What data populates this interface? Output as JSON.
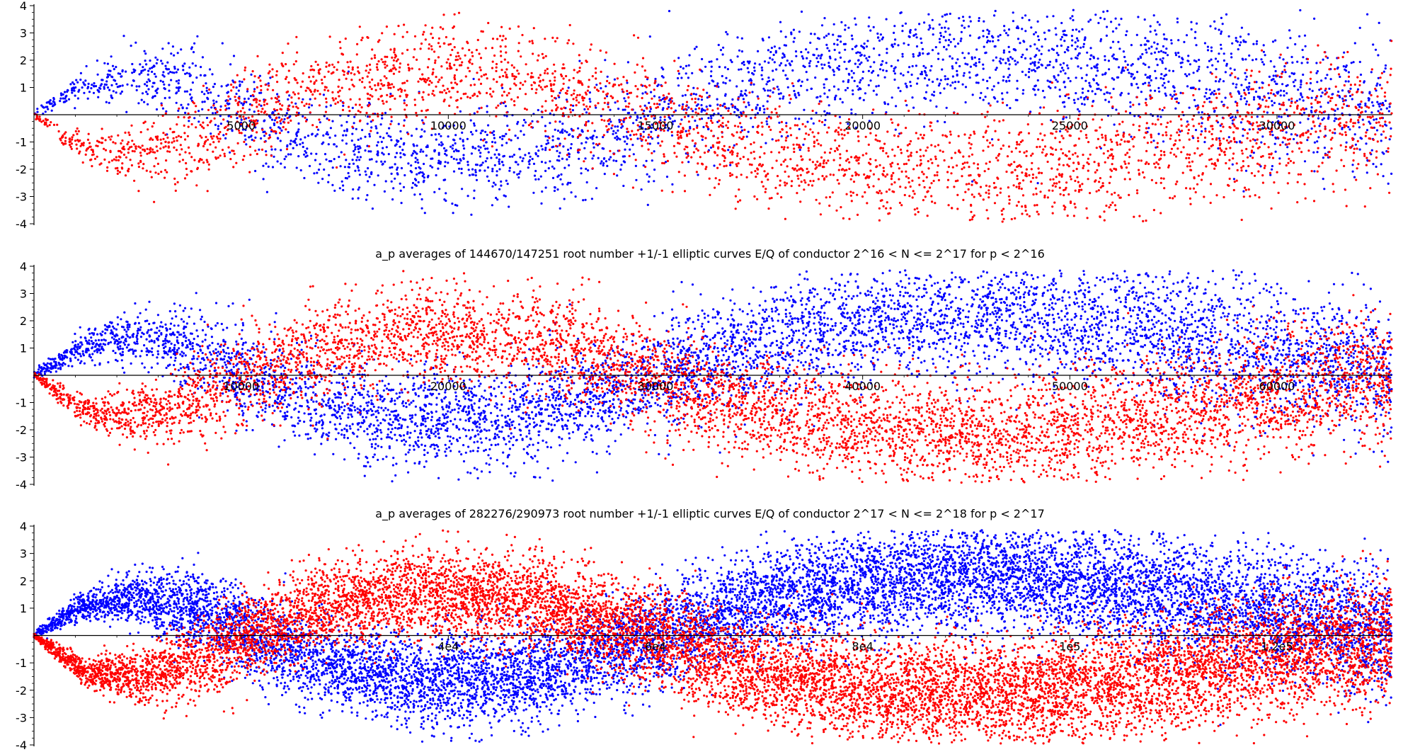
{
  "figure": {
    "panel_titles": [
      "",
      "a_p averages of 144670/147251 root number +1/-1 elliptic curves E/Q of conductor 2^16 < N <= 2^17 for p < 2^16",
      "a_p averages of 282276/290973 root number +1/-1 elliptic curves E/Q of conductor 2^17 < N <= 2^18 for p < 2^17"
    ],
    "colors": {
      "root_number_plus_one": "#0000ff",
      "root_number_minus_one": "#ff0000",
      "axes": "#000000"
    }
  },
  "chart_data": [
    {
      "type": "scatter",
      "title": "",
      "xlabel": "",
      "ylabel": "",
      "xlim": [
        0,
        32768
      ],
      "ylim": [
        -4,
        4
      ],
      "xticks": [
        5000,
        10000,
        15000,
        20000,
        25000,
        30000
      ],
      "xtick_labels": [
        "5000",
        "10000",
        "15000",
        "20000",
        "25000",
        "30000"
      ],
      "yticks": [
        -4,
        -3,
        -2,
        -1,
        1,
        2,
        3,
        4
      ],
      "ytick_labels": [
        "-4",
        "-3",
        "-2",
        "-1",
        "1",
        "2",
        "3",
        "4"
      ],
      "grid": false,
      "series": [
        {
          "color": "#0000ff",
          "approx_trend": {
            "x": [
              0,
              1200,
              2500,
              4000,
              5000,
              7000,
              9500,
              12000,
              14500,
              17000,
              20000,
              23000,
              26000,
              29000,
              31500,
              32768
            ],
            "y": [
              0,
              1.1,
              1.4,
              0.9,
              0.1,
              -1.1,
              -1.7,
              -1.4,
              -0.4,
              1.0,
              2.0,
              2.2,
              1.8,
              1.1,
              0.4,
              0.1
            ]
          },
          "approx_point_count": 3200,
          "approx_spread": 0.55
        },
        {
          "color": "#ff0000",
          "approx_trend": {
            "x": [
              0,
              1200,
              2500,
              4000,
              5000,
              7000,
              9500,
              12000,
              14500,
              17000,
              20000,
              23000,
              26000,
              29000,
              31500,
              32768
            ],
            "y": [
              0,
              -1.3,
              -1.5,
              -0.9,
              -0.1,
              1.0,
              1.6,
              1.3,
              0.2,
              -1.2,
              -2.0,
              -2.2,
              -1.8,
              -1.0,
              -0.3,
              -0.1
            ]
          },
          "approx_point_count": 3200,
          "approx_spread": 0.55
        }
      ]
    },
    {
      "type": "scatter",
      "title": "a_p averages of 144670/147251 root number +1/-1 elliptic curves E/Q of conductor 2^16 < N <= 2^17 for p < 2^16",
      "xlabel": "",
      "ylabel": "",
      "xlim": [
        0,
        65536
      ],
      "ylim": [
        -4,
        4
      ],
      "xticks": [
        10000,
        20000,
        30000,
        40000,
        50000,
        60000
      ],
      "xtick_labels": [
        "10000",
        "20000",
        "30000",
        "40000",
        "50000",
        "60000"
      ],
      "yticks": [
        -4,
        -3,
        -2,
        -1,
        1,
        2,
        3,
        4
      ],
      "ytick_labels": [
        "-4",
        "-3",
        "-2",
        "-1",
        "1",
        "2",
        "3",
        "4"
      ],
      "grid": false,
      "series": [
        {
          "color": "#0000ff",
          "approx_trend": {
            "x": [
              0,
              2400,
              5000,
              8000,
              10000,
              14000,
              19000,
              24000,
              29000,
              34000,
              40000,
              46000,
              52000,
              58000,
              63000,
              65536
            ],
            "y": [
              0,
              1.1,
              1.4,
              0.9,
              0.1,
              -1.1,
              -1.7,
              -1.4,
              -0.4,
              1.0,
              2.0,
              2.2,
              1.8,
              1.1,
              0.4,
              0.1
            ]
          },
          "approx_point_count": 6000,
          "approx_spread": 0.55
        },
        {
          "color": "#ff0000",
          "approx_trend": {
            "x": [
              0,
              2400,
              5000,
              8000,
              10000,
              14000,
              19000,
              24000,
              29000,
              34000,
              40000,
              46000,
              52000,
              58000,
              63000,
              65536
            ],
            "y": [
              0,
              -1.3,
              -1.5,
              -0.9,
              -0.1,
              1.0,
              1.6,
              1.3,
              0.2,
              -1.2,
              -2.0,
              -2.2,
              -1.8,
              -1.0,
              -0.3,
              -0.1
            ]
          },
          "approx_point_count": 6000,
          "approx_spread": 0.55
        }
      ]
    },
    {
      "type": "scatter",
      "title": "a_p averages of 282276/290973 root number +1/-1 elliptic curves E/Q of conductor 2^17 < N <= 2^18 for p < 2^17",
      "xlabel": "",
      "ylabel": "",
      "xlim": [
        0,
        131072
      ],
      "ylim": [
        -4,
        4
      ],
      "xticks": [
        40000,
        60000,
        80000,
        100000,
        120000
      ],
      "xtick_labels": [
        "4e4",
        "6e4",
        "8e4",
        "1e5",
        "1.2e5"
      ],
      "yticks": [
        -4,
        -3,
        -2,
        -1,
        1,
        2,
        3,
        4
      ],
      "ytick_labels": [
        "-4",
        "-3",
        "-2",
        "-1",
        "1",
        "2",
        "3",
        "4"
      ],
      "grid": false,
      "series": [
        {
          "color": "#0000ff",
          "approx_trend": {
            "x": [
              0,
              4800,
              10000,
              16000,
              20000,
              28000,
              38000,
              48000,
              58000,
              68000,
              80000,
              92000,
              104000,
              116000,
              126000,
              131072
            ],
            "y": [
              0,
              1.1,
              1.4,
              0.9,
              0.1,
              -1.1,
              -1.7,
              -1.4,
              -0.4,
              1.0,
              2.0,
              2.2,
              1.8,
              1.1,
              0.4,
              0.1
            ]
          },
          "approx_point_count": 11000,
          "approx_spread": 0.5
        },
        {
          "color": "#ff0000",
          "approx_trend": {
            "x": [
              0,
              4800,
              10000,
              16000,
              20000,
              28000,
              38000,
              48000,
              58000,
              68000,
              80000,
              92000,
              104000,
              116000,
              126000,
              131072
            ],
            "y": [
              0,
              -1.3,
              -1.5,
              -0.9,
              -0.1,
              1.0,
              1.6,
              1.3,
              0.2,
              -1.2,
              -2.0,
              -2.2,
              -1.8,
              -1.0,
              -0.3,
              -0.1
            ]
          },
          "approx_point_count": 11000,
          "approx_spread": 0.5
        }
      ]
    }
  ]
}
